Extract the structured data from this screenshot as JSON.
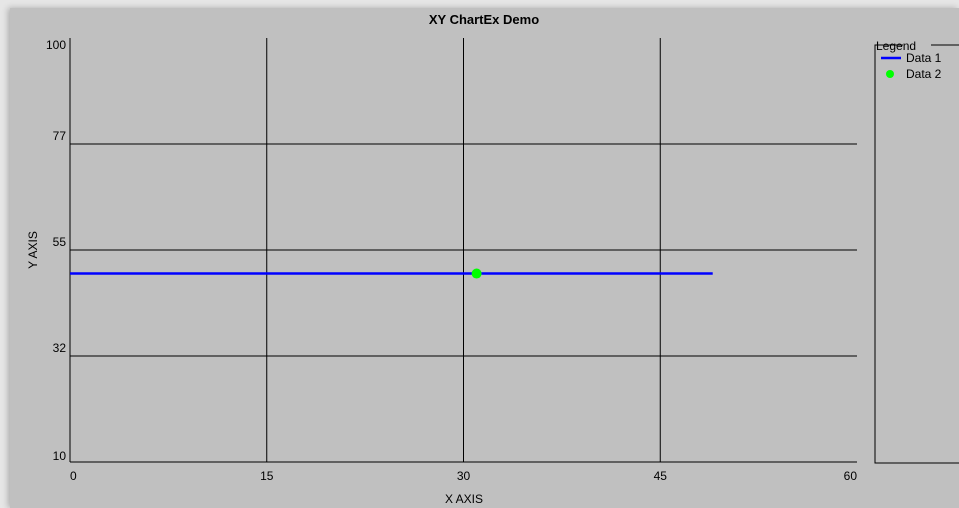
{
  "chart_data": {
    "type": "line",
    "title": "XY ChartEx Demo",
    "xlabel": "X AXIS",
    "ylabel": "Y AXIS",
    "xlim": [
      0,
      60
    ],
    "ylim": [
      10,
      100
    ],
    "x_ticks": [
      "0",
      "15",
      "30",
      "45",
      "60"
    ],
    "y_ticks": [
      "100",
      "77",
      "55",
      "32",
      "10"
    ],
    "grid": true,
    "legend_title": "Legend",
    "legend_position": "right",
    "series": [
      {
        "name": "Data 1",
        "style": "line",
        "color": "#0000ff",
        "points": [
          [
            0,
            50
          ],
          [
            49,
            50
          ]
        ]
      },
      {
        "name": "Data 2",
        "style": "point",
        "color": "#00ff00",
        "points": [
          [
            31,
            50
          ]
        ]
      }
    ]
  }
}
